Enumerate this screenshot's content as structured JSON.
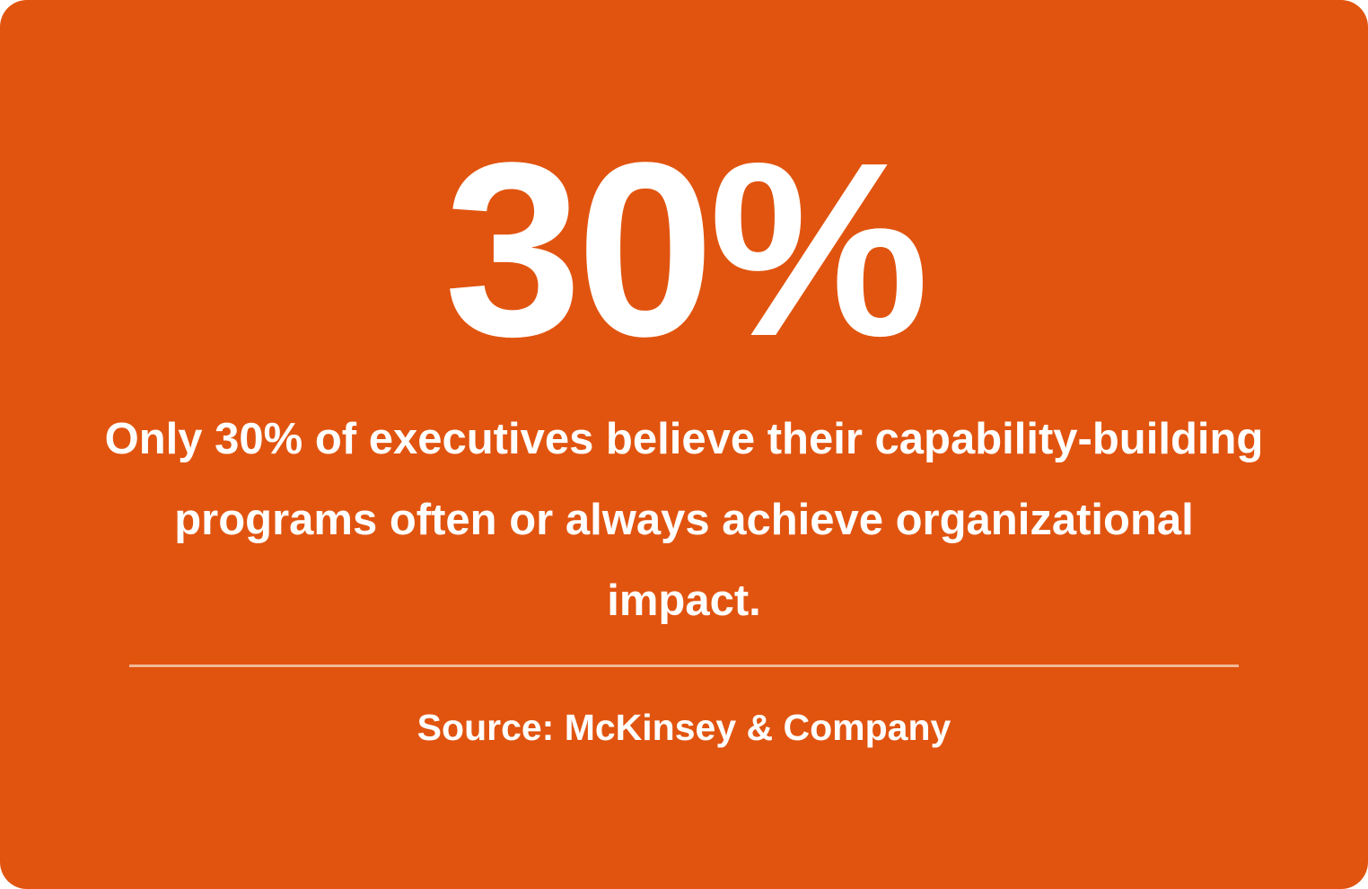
{
  "card": {
    "background_color": "#E1540F",
    "text_color": "#FFFFFF",
    "divider_color": "#F1B999"
  },
  "headline_stat": "30%",
  "statement": "Only 30% of executives believe their capability-building programs often or always achieve organizational impact.",
  "source": "Source: McKinsey & Company"
}
